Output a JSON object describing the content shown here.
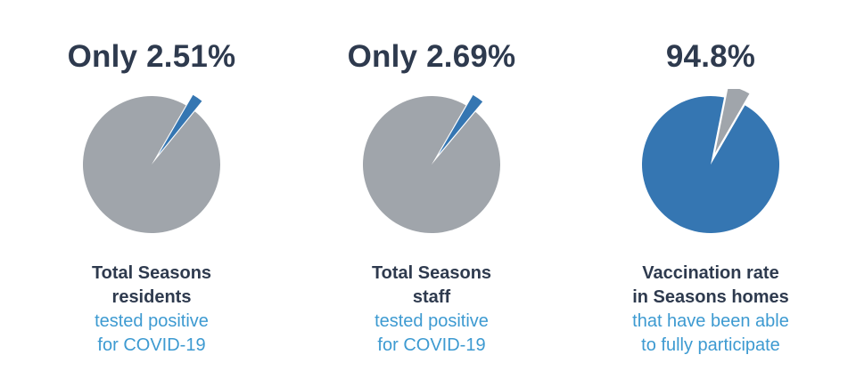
{
  "colors": {
    "title_text": "#2e3a4e",
    "subtitle_text": "#3d9ad1",
    "slice_gray": "#a0a5ab",
    "slice_blue": "#3576b2"
  },
  "chart_data": [
    {
      "type": "pie",
      "title": "Only 2.51%",
      "caption_bold": [
        "Total Seasons",
        "residents"
      ],
      "caption_sub": [
        "tested positive",
        "for COVID-19"
      ],
      "slices": [
        {
          "value": 2.51,
          "color": "#3576b2",
          "exploded": true
        },
        {
          "value": 97.49,
          "color": "#a0a5ab",
          "exploded": false
        }
      ]
    },
    {
      "type": "pie",
      "title": "Only 2.69%",
      "caption_bold": [
        "Total Seasons",
        "staff"
      ],
      "caption_sub": [
        "tested positive",
        "for COVID-19"
      ],
      "slices": [
        {
          "value": 2.69,
          "color": "#3576b2",
          "exploded": true
        },
        {
          "value": 97.31,
          "color": "#a0a5ab",
          "exploded": false
        }
      ]
    },
    {
      "type": "pie",
      "title": "94.8%",
      "caption_bold": [
        "Vaccination rate",
        "in Seasons homes"
      ],
      "caption_sub": [
        "that have been able",
        "to fully participate"
      ],
      "slices": [
        {
          "value": 94.8,
          "color": "#3576b2",
          "exploded": false
        },
        {
          "value": 5.2,
          "color": "#a0a5ab",
          "exploded": true
        }
      ]
    }
  ]
}
